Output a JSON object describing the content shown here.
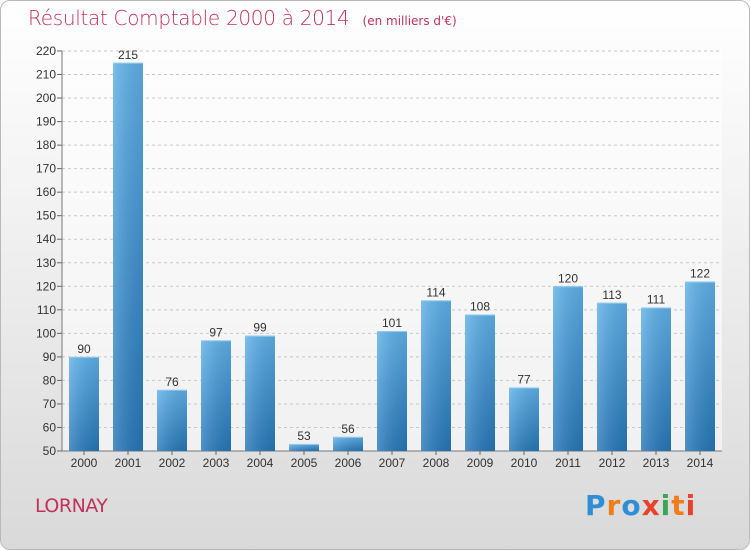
{
  "chart_data": {
    "type": "bar",
    "title": "Résultat Comptable 2000 à 2014",
    "unit_note": "(en milliers d'€)",
    "categories": [
      "2000",
      "2001",
      "2002",
      "2003",
      "2004",
      "2005",
      "2006",
      "2007",
      "2008",
      "2009",
      "2010",
      "2011",
      "2012",
      "2013",
      "2014"
    ],
    "values": [
      90,
      215,
      76,
      97,
      99,
      53,
      56,
      101,
      114,
      108,
      77,
      120,
      113,
      111,
      122
    ],
    "ylim": [
      50,
      220
    ],
    "yticks": [
      50,
      60,
      70,
      80,
      90,
      100,
      110,
      120,
      130,
      140,
      150,
      160,
      170,
      180,
      190,
      200,
      210,
      220
    ],
    "grid": true,
    "xlabel": "",
    "ylabel": ""
  },
  "footer": {
    "commune": "LORNAY",
    "logo_text": "Proxiti"
  },
  "colors": {
    "title": "#c0325b",
    "bar_light": "#5aaee6",
    "bar_dark": "#2a7dbf",
    "logo": [
      "#2e8fd4",
      "#f07d1a",
      "#2e8fd4",
      "#e8422a",
      "#3aa655",
      "#f07d1a",
      "#e8422a"
    ]
  }
}
